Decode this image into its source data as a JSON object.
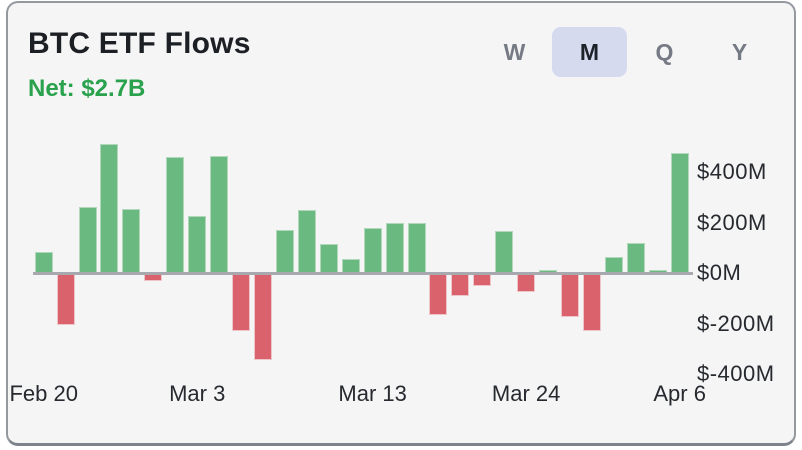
{
  "header": {
    "title": "BTC ETF Flows",
    "net_label": "Net: $2.7B"
  },
  "period_toggle": {
    "options": [
      {
        "label": "W",
        "selected": false
      },
      {
        "label": "M",
        "selected": true
      },
      {
        "label": "Q",
        "selected": false
      },
      {
        "label": "Y",
        "selected": false
      }
    ]
  },
  "chart_data": {
    "type": "bar",
    "title": "BTC ETF Flows",
    "net_total": "$2.7B",
    "unit": "USD millions",
    "values": [
      85,
      -205,
      260,
      510,
      255,
      -30,
      460,
      225,
      465,
      -230,
      -345,
      170,
      250,
      115,
      55,
      180,
      200,
      200,
      -165,
      -90,
      -50,
      165,
      -75,
      10,
      -175,
      -230,
      65,
      120,
      10,
      475
    ],
    "x_tick_labels": [
      {
        "label": "Feb 20",
        "bar_index": 0
      },
      {
        "label": "Mar 3",
        "bar_index": 7
      },
      {
        "label": "Mar 13",
        "bar_index": 15
      },
      {
        "label": "Mar 24",
        "bar_index": 22
      },
      {
        "label": "Apr 6",
        "bar_index": 29
      }
    ],
    "y_ticks": [
      {
        "label": "$400M",
        "value": 400
      },
      {
        "label": "$200M",
        "value": 200
      },
      {
        "label": "$0M",
        "value": 0
      },
      {
        "label": "$-200M",
        "value": -200
      },
      {
        "label": "$-400M",
        "value": -400
      }
    ],
    "ylim": [
      -400,
      520
    ],
    "grid": false,
    "legend": false,
    "positive_color": "#6ab980",
    "negative_color": "#d9626c"
  },
  "colors": {
    "card_bg": "#f5f5f6",
    "card_border": "#94999f",
    "card_border_bottom": "#7d838b",
    "title": "#1c1f24",
    "net_green": "#2aa24d",
    "toggle_fg": "#757a84",
    "toggle_selected_bg": "#d5daef",
    "toggle_selected_fg": "#1e222a",
    "bar_pos": "#6ab980",
    "bar_pos_edge": "#b2d8bc",
    "bar_neg": "#d9626c",
    "bar_neg_edge": "#eec6ca",
    "axis_line": "#a7a9ae",
    "axis_text": "#26292e"
  }
}
